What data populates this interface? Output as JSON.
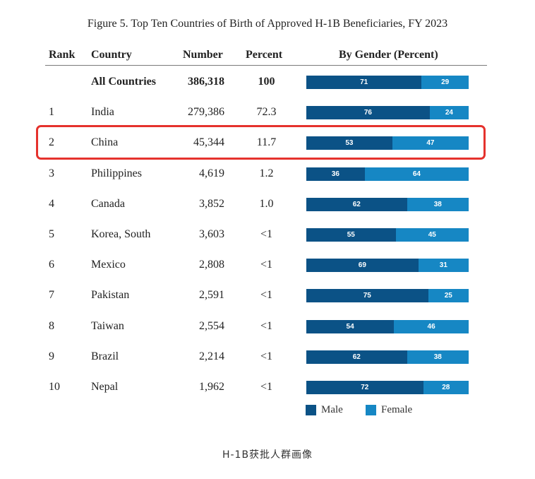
{
  "title": "Figure 5. Top Ten Countries of Birth of Approved H-1B Beneficiaries, FY 2023",
  "caption": "H-1B获批人群画像",
  "colors": {
    "male": "#0b5286",
    "female": "#1687c4",
    "highlight": "#e5322d"
  },
  "chart_data": {
    "type": "table",
    "title": "Figure 5. Top Ten Countries of Birth of Approved H-1B Beneficiaries, FY 2023",
    "columns": [
      "Rank",
      "Country",
      "Number",
      "Percent",
      "By Gender (Percent)"
    ],
    "rows": [
      {
        "rank": "",
        "country": "All Countries",
        "number": "386,318",
        "percent": "100",
        "male": 71,
        "female": 29,
        "bold": true
      },
      {
        "rank": "1",
        "country": "India",
        "number": "279,386",
        "percent": "72.3",
        "male": 76,
        "female": 24
      },
      {
        "rank": "2",
        "country": "China",
        "number": "45,344",
        "percent": "11.7",
        "male": 53,
        "female": 47,
        "highlighted": true
      },
      {
        "rank": "3",
        "country": "Philippines",
        "number": "4,619",
        "percent": "1.2",
        "male": 36,
        "female": 64
      },
      {
        "rank": "4",
        "country": "Canada",
        "number": "3,852",
        "percent": "1.0",
        "male": 62,
        "female": 38
      },
      {
        "rank": "5",
        "country": "Korea, South",
        "number": "3,603",
        "percent": "<1",
        "male": 55,
        "female": 45
      },
      {
        "rank": "6",
        "country": "Mexico",
        "number": "2,808",
        "percent": "<1",
        "male": 69,
        "female": 31
      },
      {
        "rank": "7",
        "country": "Pakistan",
        "number": "2,591",
        "percent": "<1",
        "male": 75,
        "female": 25
      },
      {
        "rank": "8",
        "country": "Taiwan",
        "number": "2,554",
        "percent": "<1",
        "male": 54,
        "female": 46
      },
      {
        "rank": "9",
        "country": "Brazil",
        "number": "2,214",
        "percent": "<1",
        "male": 62,
        "female": 38
      },
      {
        "rank": "10",
        "country": "Nepal",
        "number": "1,962",
        "percent": "<1",
        "male": 72,
        "female": 28
      }
    ],
    "legend": [
      {
        "name": "Male",
        "color": "#0b5286"
      },
      {
        "name": "Female",
        "color": "#1687c4"
      }
    ]
  }
}
